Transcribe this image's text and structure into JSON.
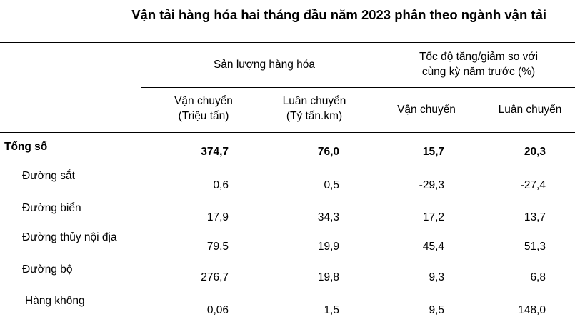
{
  "title": "Vận tải hàng hóa hai tháng đầu năm 2023 phân theo ngành vận tải",
  "header": {
    "group1": "Sản lượng hàng hóa",
    "group2_line1": "Tốc độ tăng/giảm so với",
    "group2_line2": "cùng kỳ năm trước (%)",
    "col1_line1": "Vận chuyển",
    "col1_line2": "(Triệu tấn)",
    "col2_line1": "Luân chuyển",
    "col2_line2": "(Tỷ tấn.km)",
    "col3": "Vận chuyển",
    "col4": "Luân chuyển"
  },
  "rows": [
    {
      "label": "Tổng số",
      "values": [
        "374,7",
        "76,0",
        "15,7",
        "20,3"
      ]
    },
    {
      "label": "Đường sắt",
      "values": [
        "0,6",
        "0,5",
        "-29,3",
        "-27,4"
      ]
    },
    {
      "label": "Đường biển",
      "values": [
        "17,9",
        "34,3",
        "17,2",
        "13,7"
      ]
    },
    {
      "label": "Đường thủy nội địa",
      "values": [
        "79,5",
        "19,9",
        "45,4",
        "51,3"
      ]
    },
    {
      "label": "Đường bộ",
      "values": [
        "276,7",
        "19,8",
        "9,3",
        "6,8"
      ]
    },
    {
      "label": "Hàng không",
      "values": [
        "0,06",
        "1,5",
        "9,5",
        "148,0"
      ]
    }
  ]
}
